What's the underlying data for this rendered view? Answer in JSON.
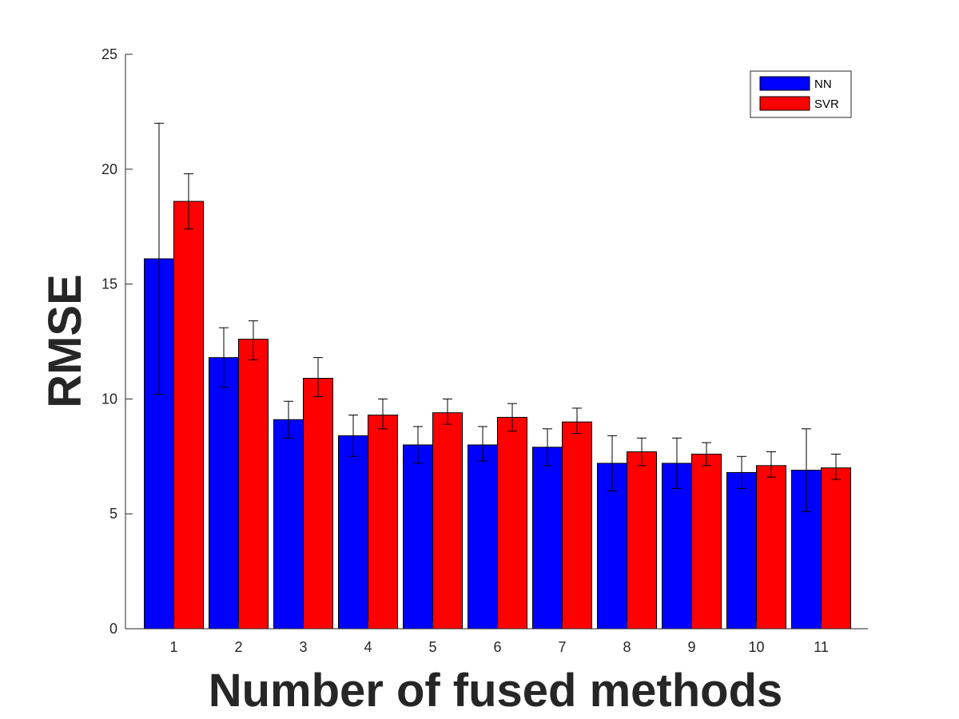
{
  "chart_data": {
    "type": "bar",
    "title": "",
    "xlabel": "Number of fused methods",
    "ylabel": "RMSE",
    "categories": [
      "1",
      "2",
      "3",
      "4",
      "5",
      "6",
      "7",
      "8",
      "9",
      "10",
      "11"
    ],
    "ylim": [
      0,
      25
    ],
    "yticks": [
      "0",
      "5",
      "10",
      "15",
      "20",
      "25"
    ],
    "grid": false,
    "legend_position": "top-right",
    "series": [
      {
        "name": "NN",
        "color": "#0000ff",
        "values": [
          16.1,
          11.8,
          9.1,
          8.4,
          8.0,
          8.0,
          7.9,
          7.2,
          7.2,
          6.8,
          6.9
        ],
        "error_low": [
          10.2,
          10.5,
          8.3,
          7.5,
          7.2,
          7.3,
          7.1,
          6.0,
          6.1,
          6.1,
          5.1
        ],
        "error_high": [
          22.0,
          13.1,
          9.9,
          9.3,
          8.8,
          8.8,
          8.7,
          8.4,
          8.3,
          7.5,
          8.7
        ]
      },
      {
        "name": "SVR",
        "color": "#ff0000",
        "values": [
          18.6,
          12.6,
          10.9,
          9.3,
          9.4,
          9.2,
          9.0,
          7.7,
          7.6,
          7.1,
          7.0
        ],
        "error_low": [
          17.4,
          11.7,
          10.1,
          8.7,
          8.9,
          8.6,
          8.5,
          7.1,
          7.1,
          6.6,
          6.5
        ],
        "error_high": [
          19.8,
          13.4,
          11.8,
          10.0,
          10.0,
          9.8,
          9.6,
          8.3,
          8.1,
          7.7,
          7.6
        ]
      }
    ]
  }
}
